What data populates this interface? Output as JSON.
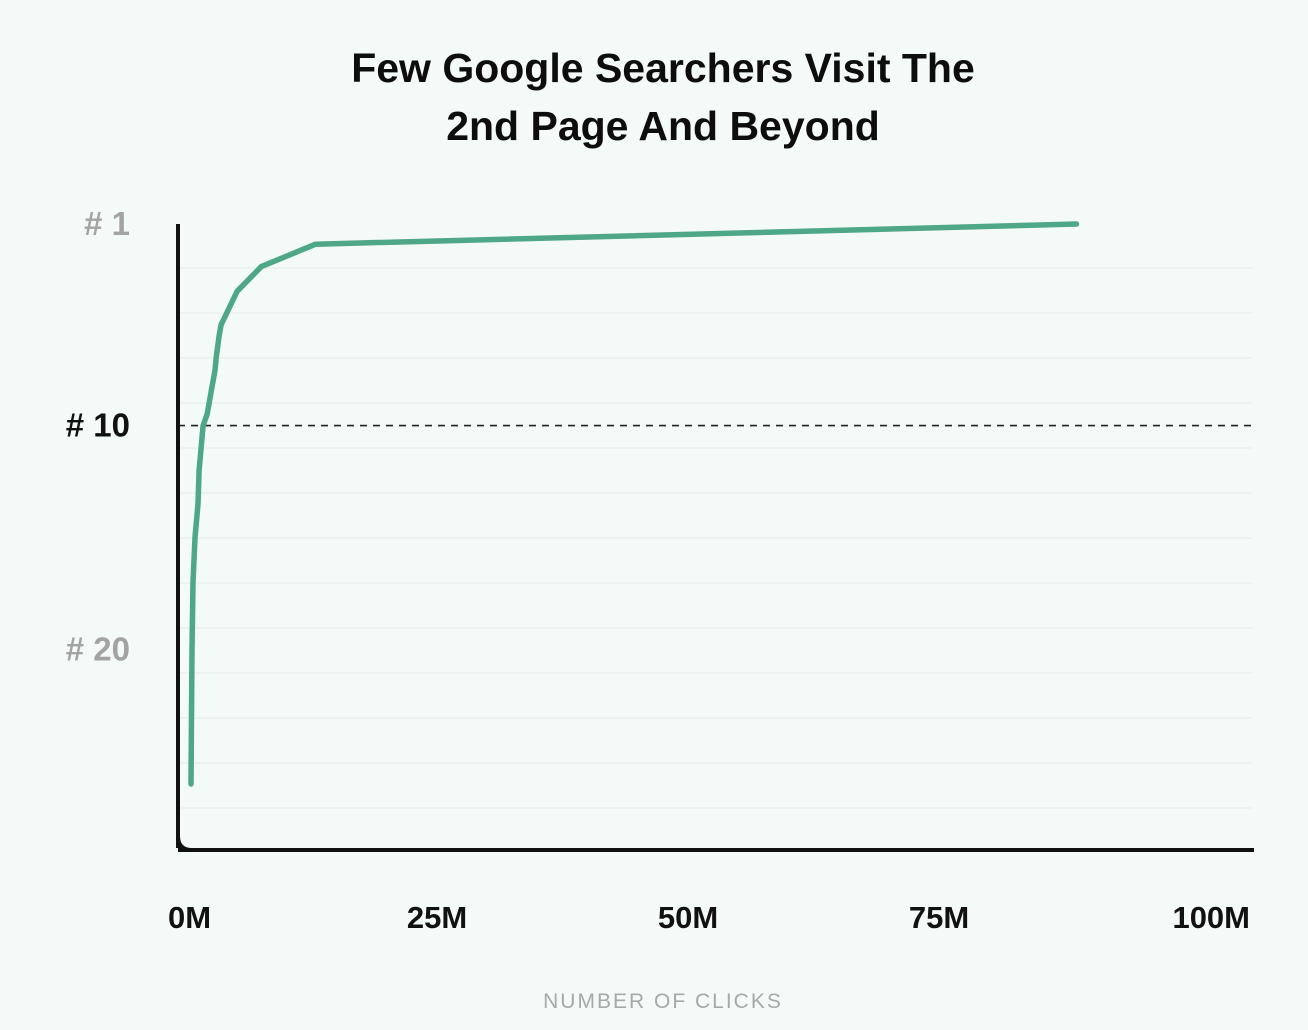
{
  "chart_data": {
    "type": "line",
    "title": [
      "Few Google Searchers Visit The",
      "2nd Page And Beyond"
    ],
    "xlabel": "NUMBER OF CLICKS",
    "ylabel": "",
    "x_ticks": [
      {
        "value": 0,
        "label": "0M"
      },
      {
        "value": 25,
        "label": "25M"
      },
      {
        "value": 50,
        "label": "50M"
      },
      {
        "value": 75,
        "label": "75M"
      },
      {
        "value": 100,
        "label": "100M"
      }
    ],
    "y_ticks": [
      {
        "value": 1,
        "label": "# 1",
        "highlight": false
      },
      {
        "value": 10,
        "label": "# 10",
        "highlight": true
      },
      {
        "value": 20,
        "label": "# 20",
        "highlight": false
      }
    ],
    "xlim": [
      0,
      100
    ],
    "ylim": [
      1,
      28
    ],
    "y_inverted": true,
    "grid": true,
    "reference_line": {
      "y": 10,
      "style": "dashed"
    },
    "colors": {
      "line": "#4ea786",
      "axis": "#111111",
      "grid": "#e3ebe6",
      "background": "#f4faf7"
    },
    "series": [
      {
        "x": [
          88.7,
          12.9,
          7.5,
          5.1,
          3.5,
          3.3,
          3.0,
          2.9,
          2.7,
          2.5,
          2.3,
          2.1,
          1.7,
          1.5,
          1.3,
          1.2,
          1.1,
          0.9,
          0.8,
          0.7,
          0.6,
          0.5
        ],
        "y": [
          1,
          1.9,
          2.9,
          4,
          5.5,
          6,
          7,
          7.5,
          8,
          8.5,
          9,
          9.5,
          10,
          11,
          12,
          13.5,
          14,
          15,
          16,
          17,
          20,
          26
        ]
      }
    ]
  }
}
